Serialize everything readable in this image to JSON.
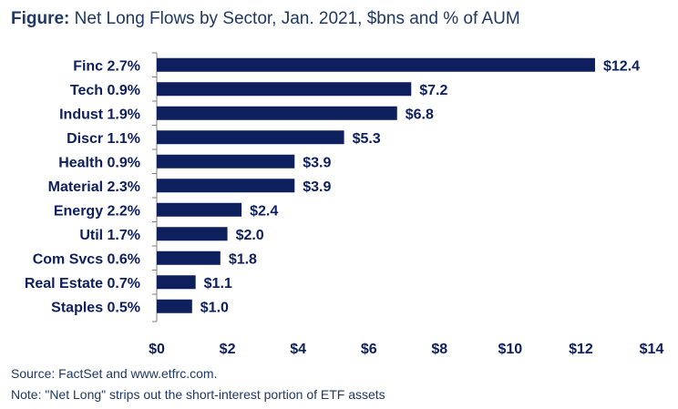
{
  "title": {
    "lead": "Figure:",
    "rest": " Net Long Flows by Sector, Jan. 2021, $bns and % of AUM"
  },
  "chart_data": {
    "type": "bar",
    "orientation": "horizontal",
    "categories": [
      "Finc 2.7%",
      "Tech 0.9%",
      "Indust 1.9%",
      "Discr 1.1%",
      "Health 0.9%",
      "Material 2.3%",
      "Energy 2.2%",
      "Util 1.7%",
      "Com Svcs 0.6%",
      "Real Estate 0.7%",
      "Staples 0.5%"
    ],
    "values": [
      12.4,
      7.2,
      6.8,
      5.3,
      3.9,
      3.9,
      2.4,
      2.0,
      1.8,
      1.1,
      1.0
    ],
    "value_labels": [
      "$12.4",
      "$7.2",
      "$6.8",
      "$5.3",
      "$3.9",
      "$3.9",
      "$2.4",
      "$2.0",
      "$1.8",
      "$1.1",
      "$1.0"
    ],
    "xlim": [
      0,
      14
    ],
    "xticks": [
      0,
      2,
      4,
      6,
      8,
      10,
      12,
      14
    ],
    "xtick_labels": [
      "$0",
      "$2",
      "$4",
      "$6",
      "$8",
      "$10",
      "$12",
      "$14"
    ],
    "grid": false,
    "legend": "none",
    "bar_color": "#0d1f5c",
    "text_color": "#0d1f5c"
  },
  "footer": {
    "source": "Source: FactSet and www.etfrc.com.",
    "note": "Note: \"Net Long\" strips out the short-interest portion of ETF assets"
  }
}
